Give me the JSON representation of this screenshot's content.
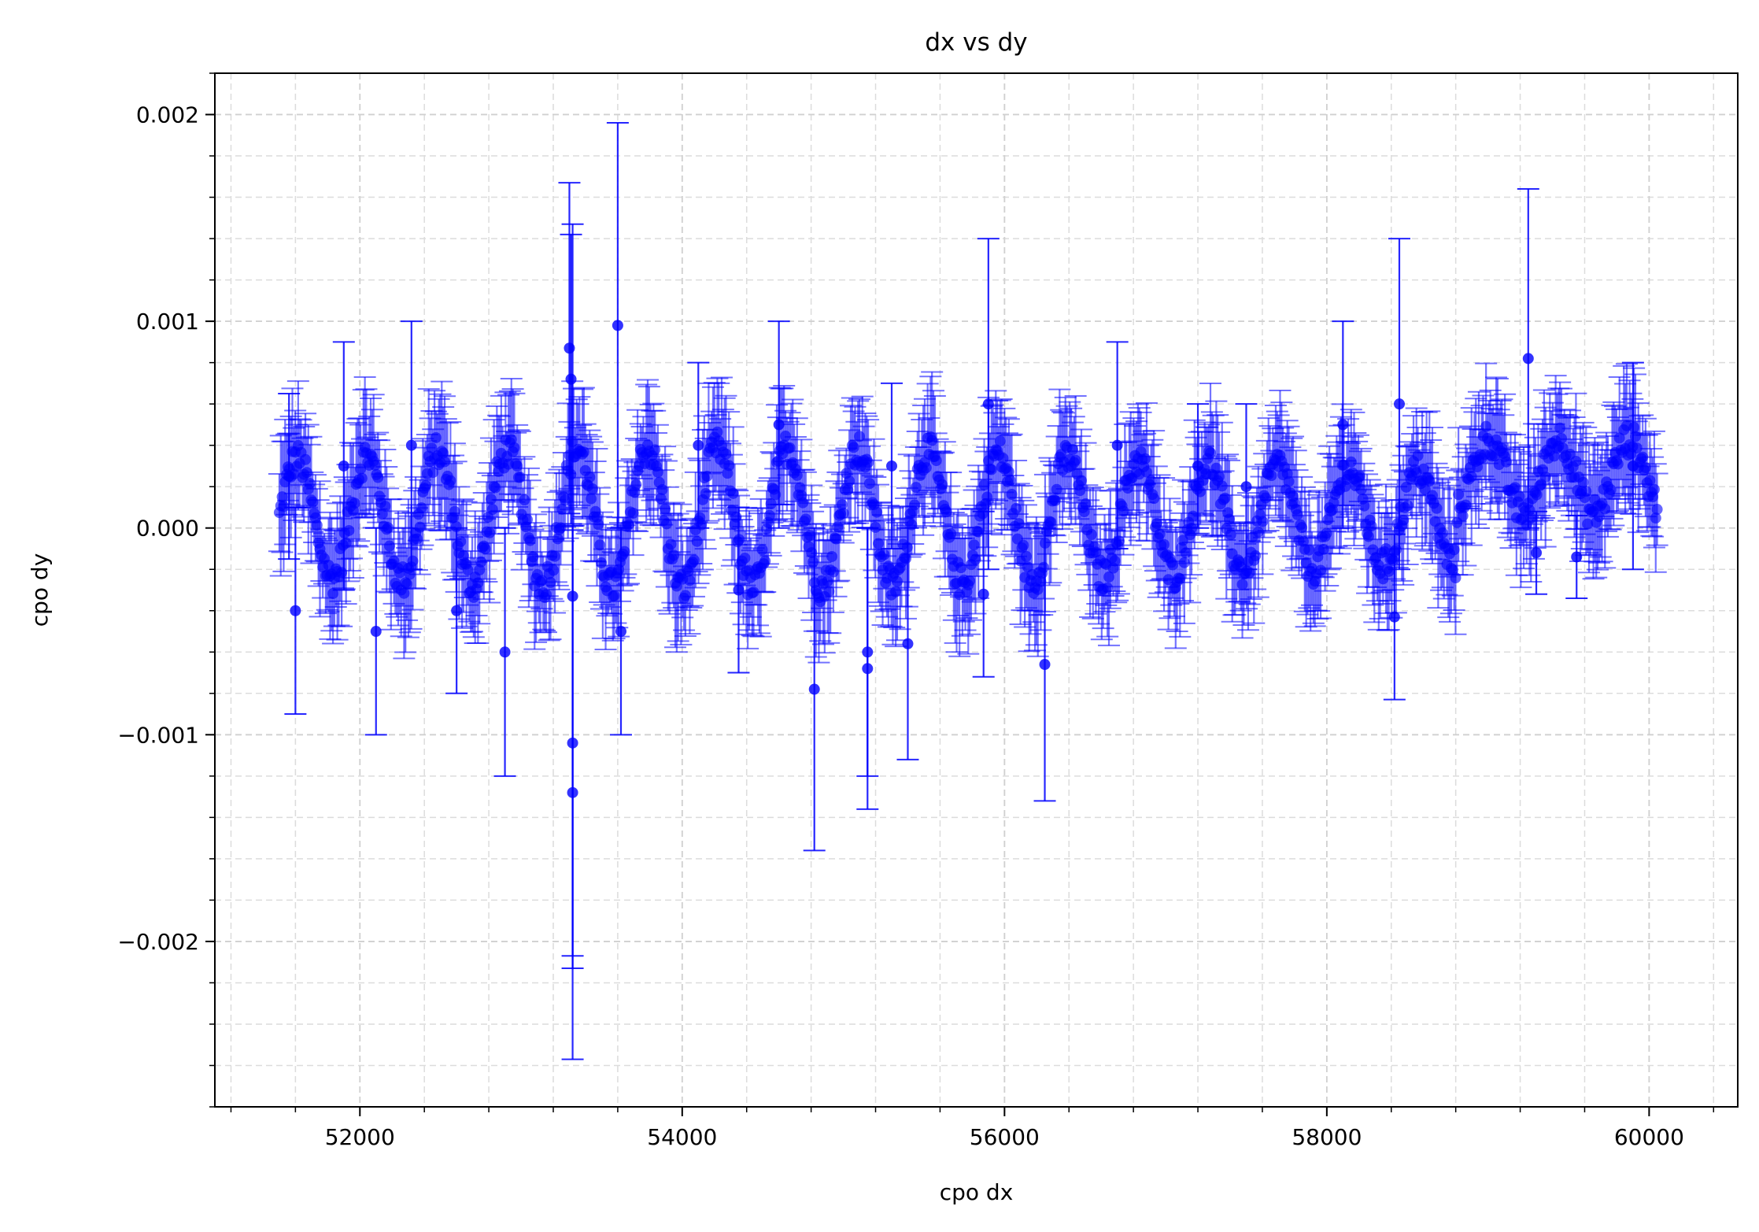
{
  "chart_data": {
    "type": "scatter",
    "title": "dx vs dy",
    "xlabel": "cpo dx",
    "ylabel": "cpo dy",
    "xlim": [
      51100,
      60550
    ],
    "ylim": [
      -0.0028,
      0.0022
    ],
    "x_ticks": [
      {
        "value": 52000,
        "label": "52000"
      },
      {
        "value": 54000,
        "label": "54000"
      },
      {
        "value": 56000,
        "label": "56000"
      },
      {
        "value": 58000,
        "label": "58000"
      },
      {
        "value": 60000,
        "label": "60000"
      }
    ],
    "y_ticks": [
      {
        "value": -0.002,
        "label": "−0.002"
      },
      {
        "value": -0.001,
        "label": "−0.001"
      },
      {
        "value": 0.0,
        "label": "0.000"
      },
      {
        "value": 0.001,
        "label": "0.001"
      },
      {
        "value": 0.002,
        "label": "0.002"
      }
    ],
    "x_minor_step": 400,
    "y_minor_step": 0.0002,
    "grid": true,
    "grid_style": "dashed",
    "legend": "none",
    "series": [
      {
        "color": "#0000ff",
        "marker": "circle",
        "error_bars": true,
        "x_range": [
          51500,
          60050
        ],
        "oscillation_period_days": 435,
        "points": [
          {
            "x": 51560,
            "y": 0.00025,
            "err": 0.0004
          },
          {
            "x": 51600,
            "y": -0.0004,
            "err": 0.0005
          },
          {
            "x": 51900,
            "y": 0.0003,
            "err": 0.0006
          },
          {
            "x": 52100,
            "y": -0.0005,
            "err": 0.0005
          },
          {
            "x": 52320,
            "y": 0.0004,
            "err": 0.0006
          },
          {
            "x": 52600,
            "y": -0.0004,
            "err": 0.0004
          },
          {
            "x": 52900,
            "y": -0.0006,
            "err": 0.0006
          },
          {
            "x": 53300,
            "y": 0.00087,
            "err": 0.0008
          },
          {
            "x": 53310,
            "y": 0.00072,
            "err": 0.0007
          },
          {
            "x": 53320,
            "y": -0.00033,
            "err": 0.0018
          },
          {
            "x": 53320,
            "y": -0.00104,
            "err": 0.00103
          },
          {
            "x": 53320,
            "y": -0.00128,
            "err": 0.00129
          },
          {
            "x": 53600,
            "y": 0.00098,
            "err": 0.00098
          },
          {
            "x": 53620,
            "y": -0.0005,
            "err": 0.0005
          },
          {
            "x": 54100,
            "y": 0.0004,
            "err": 0.0004
          },
          {
            "x": 54350,
            "y": -0.0003,
            "err": 0.0004
          },
          {
            "x": 54600,
            "y": 0.0005,
            "err": 0.0005
          },
          {
            "x": 54820,
            "y": -0.00078,
            "err": 0.00078
          },
          {
            "x": 55150,
            "y": -0.0006,
            "err": 0.0006
          },
          {
            "x": 55150,
            "y": -0.00068,
            "err": 0.00068
          },
          {
            "x": 55300,
            "y": 0.0003,
            "err": 0.0004
          },
          {
            "x": 55400,
            "y": -0.00056,
            "err": 0.00056
          },
          {
            "x": 55870,
            "y": -0.00032,
            "err": 0.0004
          },
          {
            "x": 55900,
            "y": 0.0006,
            "err": 0.0008
          },
          {
            "x": 56250,
            "y": -0.00066,
            "err": 0.00066
          },
          {
            "x": 56700,
            "y": 0.0004,
            "err": 0.0005
          },
          {
            "x": 57200,
            "y": 0.0003,
            "err": 0.0003
          },
          {
            "x": 57500,
            "y": 0.0002,
            "err": 0.0004
          },
          {
            "x": 58100,
            "y": 0.0005,
            "err": 0.0005
          },
          {
            "x": 58420,
            "y": -0.00043,
            "err": 0.0004
          },
          {
            "x": 58450,
            "y": 0.0006,
            "err": 0.0008
          },
          {
            "x": 59250,
            "y": 0.00082,
            "err": 0.00082
          },
          {
            "x": 59300,
            "y": -0.00012,
            "err": 0.0002
          },
          {
            "x": 59550,
            "y": -0.00014,
            "err": 0.0002
          },
          {
            "x": 59900,
            "y": 0.0003,
            "err": 0.0005
          }
        ]
      }
    ]
  }
}
